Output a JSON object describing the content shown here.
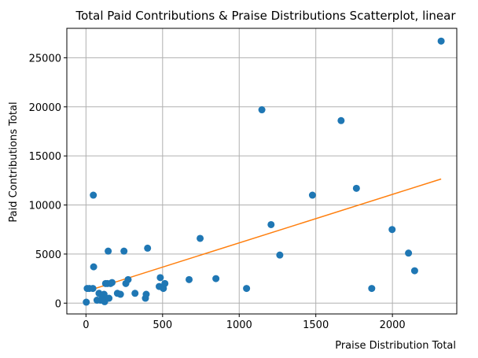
{
  "chart_data": {
    "type": "scatter",
    "title": "Total Paid Contributions & Praise Distributions Scatterplot, linear",
    "xlabel": "Praise Distribution Total",
    "ylabel": "Paid Contributions Total",
    "xlim": [
      -125,
      2420
    ],
    "ylim": [
      -1100,
      28000
    ],
    "xticks": [
      0,
      500,
      1000,
      1500,
      2000
    ],
    "yticks": [
      0,
      5000,
      10000,
      15000,
      20000,
      25000
    ],
    "xtick_labels": [
      "0",
      "500",
      "1000",
      "1500",
      "2000"
    ],
    "ytick_labels": [
      "0",
      "5000",
      "10000",
      "15000",
      "20000",
      "25000"
    ],
    "grid": true,
    "colors": {
      "points": "#1f77b4",
      "fit_line": "#ff7f0e",
      "grid": "#b0b0b0"
    },
    "series": [
      {
        "type": "scatter",
        "points": [
          {
            "x": 2,
            "y": 100
          },
          {
            "x": 8,
            "y": 1500
          },
          {
            "x": 22,
            "y": 1500
          },
          {
            "x": 45,
            "y": 1500
          },
          {
            "x": 48,
            "y": 11000
          },
          {
            "x": 50,
            "y": 3700
          },
          {
            "x": 72,
            "y": 300
          },
          {
            "x": 85,
            "y": 1000
          },
          {
            "x": 95,
            "y": 300
          },
          {
            "x": 105,
            "y": 800
          },
          {
            "x": 110,
            "y": 400
          },
          {
            "x": 118,
            "y": 900
          },
          {
            "x": 122,
            "y": 150
          },
          {
            "x": 128,
            "y": 2000
          },
          {
            "x": 140,
            "y": 2000
          },
          {
            "x": 145,
            "y": 5300
          },
          {
            "x": 150,
            "y": 500
          },
          {
            "x": 160,
            "y": 2000
          },
          {
            "x": 170,
            "y": 2100
          },
          {
            "x": 205,
            "y": 1000
          },
          {
            "x": 225,
            "y": 900
          },
          {
            "x": 248,
            "y": 5300
          },
          {
            "x": 260,
            "y": 2000
          },
          {
            "x": 275,
            "y": 2400
          },
          {
            "x": 320,
            "y": 1000
          },
          {
            "x": 388,
            "y": 500
          },
          {
            "x": 393,
            "y": 900
          },
          {
            "x": 402,
            "y": 5600
          },
          {
            "x": 478,
            "y": 1700
          },
          {
            "x": 485,
            "y": 2600
          },
          {
            "x": 505,
            "y": 1500
          },
          {
            "x": 515,
            "y": 2000
          },
          {
            "x": 673,
            "y": 2400
          },
          {
            "x": 745,
            "y": 6600
          },
          {
            "x": 848,
            "y": 2500
          },
          {
            "x": 1048,
            "y": 1500
          },
          {
            "x": 1148,
            "y": 19700
          },
          {
            "x": 1208,
            "y": 8000
          },
          {
            "x": 1265,
            "y": 4900
          },
          {
            "x": 1478,
            "y": 11000
          },
          {
            "x": 1665,
            "y": 18600
          },
          {
            "x": 1765,
            "y": 11700
          },
          {
            "x": 1865,
            "y": 1500
          },
          {
            "x": 1998,
            "y": 7500
          },
          {
            "x": 2105,
            "y": 5100
          },
          {
            "x": 2145,
            "y": 3300
          },
          {
            "x": 2318,
            "y": 26700
          }
        ]
      },
      {
        "type": "line",
        "points": [
          {
            "x": 0,
            "y": 1200
          },
          {
            "x": 2318,
            "y": 12650
          }
        ]
      }
    ]
  }
}
